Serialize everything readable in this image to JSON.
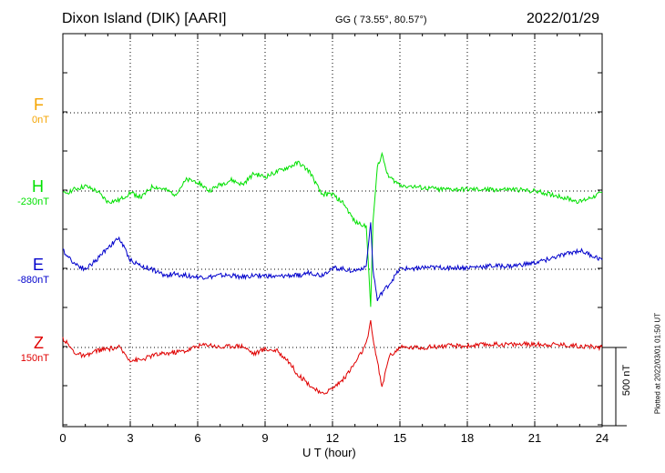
{
  "header": {
    "station": "Dixon Island (DIK)  [AARI]",
    "coords": "GG ( 73.55°,  80.57°)",
    "date": "2022/01/29"
  },
  "footer": {
    "scale_label": "500 nT",
    "plotted": "Plotted at 2022/03/01 01:50 UT"
  },
  "colors": {
    "F": "#f5a400",
    "H": "#00e000",
    "E": "#0000cc",
    "Z": "#e00000"
  },
  "chart_data": {
    "type": "line",
    "title": "Dixon Island (DIK)  [AARI]",
    "xlabel": "U T (hour)",
    "ylabel": "",
    "xlim": [
      0,
      24
    ],
    "x_ticks": [
      "0",
      "3",
      "6",
      "9",
      "12",
      "15",
      "18",
      "21",
      "24"
    ],
    "grid": true,
    "scale_bar_nT": 500,
    "series": [
      {
        "name": "F",
        "baseline_label": "0nT",
        "x": [],
        "values": []
      },
      {
        "name": "H",
        "baseline_label": "-230nT",
        "x": [
          0,
          0.5,
          1,
          1.5,
          2,
          2.5,
          3,
          3.5,
          4,
          4.5,
          5,
          5.5,
          6,
          6.5,
          7,
          7.5,
          8,
          8.5,
          9,
          9.5,
          10,
          10.5,
          11,
          11.5,
          12,
          12.5,
          13,
          13.5,
          13.7,
          13.8,
          14,
          14.2,
          14.5,
          15,
          16,
          17,
          18,
          19,
          20,
          21,
          22,
          23,
          24
        ],
        "values": [
          -20,
          10,
          30,
          0,
          -70,
          -60,
          -10,
          -40,
          30,
          10,
          -20,
          70,
          60,
          0,
          40,
          70,
          40,
          110,
          90,
          120,
          150,
          180,
          120,
          -20,
          -20,
          -80,
          -200,
          -220,
          -740,
          -200,
          160,
          230,
          90,
          40,
          20,
          10,
          10,
          10,
          10,
          0,
          -30,
          -70,
          -10
        ]
      },
      {
        "name": "E",
        "baseline_label": "-880nT",
        "x": [
          0,
          0.5,
          1,
          1.5,
          2,
          2.5,
          3,
          3.5,
          4,
          4.5,
          5,
          5.5,
          6,
          6.5,
          7,
          7.5,
          8,
          8.5,
          9,
          9.5,
          10,
          10.5,
          11,
          11.5,
          12,
          12.5,
          13,
          13.5,
          13.7,
          13.8,
          14,
          14.2,
          14.5,
          15,
          16,
          17,
          18,
          19,
          20,
          21,
          22,
          23,
          24
        ],
        "values": [
          120,
          40,
          0,
          60,
          140,
          200,
          60,
          20,
          0,
          -40,
          -30,
          -40,
          -50,
          -50,
          -40,
          -40,
          -50,
          -40,
          -40,
          -50,
          -40,
          -40,
          -20,
          -40,
          10,
          0,
          -10,
          20,
          300,
          0,
          -200,
          -150,
          -100,
          0,
          10,
          10,
          10,
          20,
          20,
          40,
          80,
          120,
          60
        ]
      },
      {
        "name": "Z",
        "baseline_label": "150nT",
        "x": [
          0,
          0.5,
          1,
          1.5,
          2,
          2.5,
          3,
          3.5,
          4,
          4.5,
          5,
          5.5,
          6,
          6.5,
          7,
          7.5,
          8,
          8.5,
          9,
          9.5,
          10,
          10.5,
          11,
          11.5,
          12,
          12.5,
          13,
          13.5,
          13.7,
          13.8,
          14,
          14.2,
          14.5,
          15,
          16,
          17,
          18,
          19,
          20,
          21,
          22,
          23,
          24
        ],
        "values": [
          60,
          -30,
          -60,
          -20,
          -10,
          0,
          -80,
          -80,
          -50,
          -40,
          -30,
          -20,
          10,
          20,
          0,
          10,
          10,
          -40,
          -10,
          -20,
          -80,
          -180,
          -240,
          -300,
          -260,
          -200,
          -100,
          20,
          160,
          60,
          -90,
          -260,
          -60,
          0,
          0,
          10,
          10,
          20,
          20,
          20,
          20,
          10,
          0
        ]
      }
    ]
  }
}
